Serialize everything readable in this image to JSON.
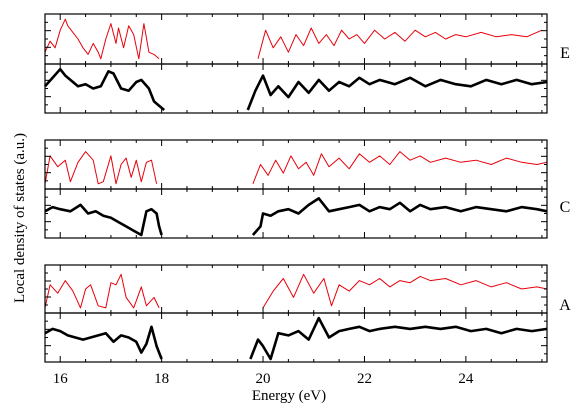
{
  "chart_data": {
    "type": "line",
    "xlabel": "Energy (eV)",
    "ylabel": "Local density of states (a.u.)",
    "xlim": [
      15.7,
      25.6
    ],
    "x_ticks": [
      16,
      18,
      20,
      22,
      24
    ],
    "tick_labels": [
      "16",
      "18",
      "20",
      "22",
      "24"
    ],
    "grid": false,
    "series_colors": {
      "thin": "#e8000b",
      "thick": "#000000"
    },
    "groups": [
      {
        "label": "E",
        "panels": [
          {
            "style": "thin",
            "ylim": [
              0,
              1
            ],
            "x": [
              15.7,
              15.8,
              15.9,
              16.0,
              16.1,
              16.15,
              16.25,
              16.35,
              16.45,
              16.55,
              16.65,
              16.75,
              16.8,
              16.9,
              17.0,
              17.1,
              17.15,
              17.25,
              17.35,
              17.45,
              17.55,
              17.65,
              17.75,
              17.85,
              17.95
            ],
            "y": [
              0.2,
              0.45,
              0.3,
              0.7,
              0.95,
              0.8,
              0.65,
              0.5,
              0.3,
              0.15,
              0.4,
              0.2,
              0.05,
              0.5,
              0.85,
              0.4,
              0.75,
              0.3,
              0.8,
              0.6,
              0.05,
              0.85,
              0.2,
              0.15,
              0.05
            ],
            "x2": [
              19.9,
              20.05,
              20.2,
              20.35,
              20.5,
              20.65,
              20.8,
              20.95,
              21.1,
              21.25,
              21.4,
              21.55,
              21.7,
              21.85,
              22.0,
              22.2,
              22.4,
              22.6,
              22.8,
              23.0,
              23.2,
              23.4,
              23.6,
              23.8,
              24.0,
              24.3,
              24.6,
              24.9,
              25.2,
              25.5
            ],
            "y2": [
              0.05,
              0.7,
              0.3,
              0.55,
              0.2,
              0.6,
              0.35,
              0.75,
              0.4,
              0.6,
              0.35,
              0.7,
              0.5,
              0.6,
              0.4,
              0.7,
              0.5,
              0.65,
              0.45,
              0.7,
              0.55,
              0.65,
              0.5,
              0.6,
              0.55,
              0.65,
              0.55,
              0.6,
              0.55,
              0.7
            ]
          },
          {
            "style": "thick",
            "ylim": [
              0,
              1
            ],
            "x": [
              15.7,
              15.85,
              16.0,
              16.1,
              16.2,
              16.35,
              16.5,
              16.65,
              16.8,
              16.95,
              17.05,
              17.2,
              17.35,
              17.5,
              17.6,
              17.75,
              17.85,
              17.95,
              18.05
            ],
            "y": [
              0.55,
              0.75,
              0.95,
              0.8,
              0.7,
              0.55,
              0.6,
              0.5,
              0.55,
              0.9,
              0.85,
              0.5,
              0.45,
              0.65,
              0.7,
              0.5,
              0.2,
              0.1,
              0.0
            ],
            "x2": [
              19.7,
              19.85,
              20.0,
              20.15,
              20.3,
              20.5,
              20.7,
              20.9,
              21.1,
              21.3,
              21.5,
              21.7,
              21.9,
              22.1,
              22.3,
              22.6,
              22.9,
              23.2,
              23.5,
              23.8,
              24.1,
              24.4,
              24.7,
              25.0,
              25.3,
              25.6
            ],
            "y2": [
              0.0,
              0.45,
              0.8,
              0.35,
              0.55,
              0.3,
              0.65,
              0.4,
              0.7,
              0.45,
              0.65,
              0.55,
              0.75,
              0.6,
              0.7,
              0.6,
              0.75,
              0.55,
              0.7,
              0.6,
              0.55,
              0.7,
              0.6,
              0.7,
              0.6,
              0.65
            ]
          }
        ]
      },
      {
        "label": "C",
        "panels": [
          {
            "style": "thin",
            "ylim": [
              0,
              1
            ],
            "x": [
              15.7,
              15.8,
              15.95,
              16.1,
              16.2,
              16.35,
              16.5,
              16.65,
              16.75,
              16.85,
              17.0,
              17.1,
              17.2,
              17.3,
              17.4,
              17.5,
              17.6,
              17.7,
              17.8,
              17.9
            ],
            "y": [
              0.05,
              0.7,
              0.45,
              0.6,
              0.1,
              0.55,
              0.8,
              0.6,
              0.05,
              0.1,
              0.7,
              0.05,
              0.5,
              0.65,
              0.2,
              0.6,
              0.1,
              0.55,
              0.6,
              0.05
            ],
            "x2": [
              19.8,
              19.95,
              20.1,
              20.25,
              20.4,
              20.55,
              20.7,
              20.85,
              21.0,
              21.15,
              21.3,
              21.5,
              21.7,
              21.9,
              22.1,
              22.3,
              22.5,
              22.7,
              22.9,
              23.1,
              23.3,
              23.6,
              23.9,
              24.2,
              24.5,
              24.8,
              25.1,
              25.4,
              25.6
            ],
            "y2": [
              0.05,
              0.5,
              0.25,
              0.6,
              0.3,
              0.7,
              0.4,
              0.55,
              0.25,
              0.75,
              0.45,
              0.65,
              0.4,
              0.75,
              0.55,
              0.7,
              0.5,
              0.8,
              0.6,
              0.7,
              0.55,
              0.65,
              0.55,
              0.6,
              0.5,
              0.65,
              0.55,
              0.5,
              0.55
            ]
          },
          {
            "style": "thick",
            "ylim": [
              0,
              1
            ],
            "x": [
              15.7,
              15.85,
              16.0,
              16.2,
              16.4,
              16.55,
              16.7,
              16.85,
              17.0,
              17.15,
              17.3,
              17.45,
              17.6,
              17.7,
              17.8,
              17.9,
              17.95,
              18.0
            ],
            "y": [
              0.55,
              0.65,
              0.6,
              0.55,
              0.7,
              0.5,
              0.55,
              0.45,
              0.4,
              0.3,
              0.2,
              0.1,
              0.0,
              0.55,
              0.6,
              0.5,
              0.2,
              0.0
            ],
            "x2": [
              19.8,
              19.95,
              20.0,
              20.15,
              20.3,
              20.5,
              20.7,
              20.9,
              21.1,
              21.3,
              21.5,
              21.7,
              21.9,
              22.1,
              22.3,
              22.5,
              22.7,
              22.9,
              23.1,
              23.3,
              23.6,
              23.9,
              24.2,
              24.5,
              24.8,
              25.1,
              25.4,
              25.6
            ],
            "y2": [
              0.0,
              0.2,
              0.5,
              0.45,
              0.55,
              0.6,
              0.5,
              0.7,
              0.85,
              0.55,
              0.6,
              0.65,
              0.7,
              0.55,
              0.65,
              0.6,
              0.75,
              0.55,
              0.7,
              0.6,
              0.65,
              0.55,
              0.65,
              0.6,
              0.55,
              0.65,
              0.6,
              0.55
            ]
          }
        ]
      },
      {
        "label": "A",
        "panels": [
          {
            "style": "thin",
            "ylim": [
              0,
              1
            ],
            "x": [
              15.7,
              15.8,
              15.95,
              16.1,
              16.25,
              16.4,
              16.5,
              16.6,
              16.75,
              16.9,
              17.0,
              17.1,
              17.2,
              17.3,
              17.45,
              17.6,
              17.7,
              17.85,
              17.95
            ],
            "y": [
              0.05,
              0.6,
              0.4,
              0.7,
              0.45,
              0.05,
              0.5,
              0.6,
              0.1,
              0.05,
              0.65,
              0.6,
              0.85,
              0.3,
              0.05,
              0.55,
              0.1,
              0.3,
              0.05
            ],
            "x2": [
              20.0,
              20.2,
              20.4,
              20.6,
              20.8,
              21.0,
              21.2,
              21.35,
              21.5,
              21.7,
              21.9,
              22.1,
              22.3,
              22.5,
              22.7,
              22.9,
              23.1,
              23.3,
              23.6,
              23.9,
              24.2,
              24.5,
              24.8,
              25.1,
              25.4,
              25.6
            ],
            "y2": [
              0.05,
              0.45,
              0.75,
              0.3,
              0.85,
              0.4,
              0.75,
              0.1,
              0.6,
              0.45,
              0.7,
              0.6,
              0.75,
              0.55,
              0.7,
              0.65,
              0.8,
              0.7,
              0.75,
              0.6,
              0.7,
              0.55,
              0.65,
              0.5,
              0.55,
              0.5
            ]
          },
          {
            "style": "thick",
            "ylim": [
              0,
              1
            ],
            "x": [
              15.7,
              15.85,
              16.0,
              16.15,
              16.3,
              16.45,
              16.6,
              16.75,
              16.9,
              17.05,
              17.2,
              17.35,
              17.5,
              17.6,
              17.7,
              17.8,
              17.9,
              18.0
            ],
            "y": [
              0.6,
              0.7,
              0.65,
              0.55,
              0.5,
              0.45,
              0.5,
              0.55,
              0.6,
              0.4,
              0.55,
              0.5,
              0.4,
              0.15,
              0.35,
              0.75,
              0.3,
              0.0
            ],
            "x2": [
              19.75,
              19.9,
              20.0,
              20.15,
              20.3,
              20.5,
              20.7,
              20.9,
              21.1,
              21.3,
              21.5,
              21.7,
              21.9,
              22.1,
              22.3,
              22.6,
              22.9,
              23.2,
              23.5,
              23.8,
              24.1,
              24.4,
              24.7,
              25.0,
              25.3,
              25.6
            ],
            "y2": [
              0.0,
              0.45,
              0.3,
              0.0,
              0.6,
              0.55,
              0.65,
              0.45,
              0.95,
              0.5,
              0.65,
              0.7,
              0.75,
              0.65,
              0.7,
              0.75,
              0.7,
              0.75,
              0.7,
              0.75,
              0.65,
              0.7,
              0.6,
              0.7,
              0.65,
              0.7
            ]
          }
        ]
      }
    ]
  }
}
